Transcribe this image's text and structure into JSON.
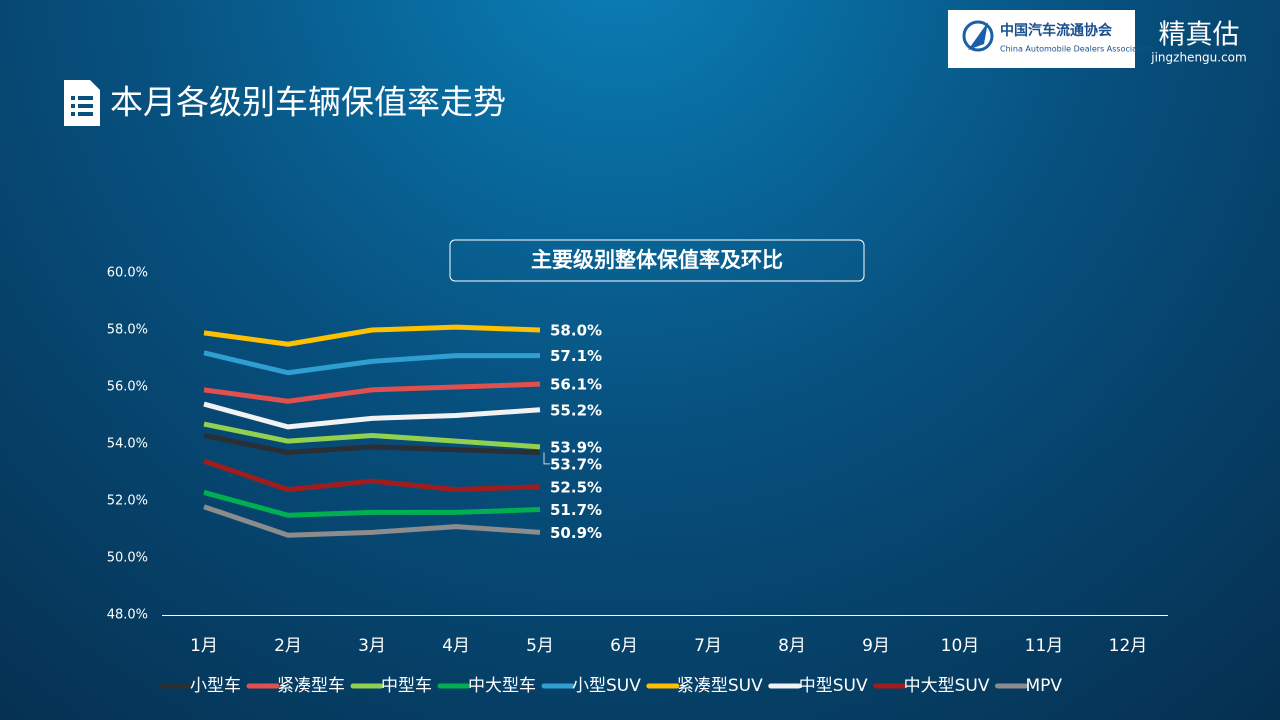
{
  "header": {
    "title": "本月各级别车辆保值率走势",
    "logo_cn": "中国汽车流通协会",
    "logo_en": "China Automobile Dealers Association",
    "brand": "精真估",
    "brand_url": "jingzhengu.com"
  },
  "chart_data": {
    "type": "line",
    "title": "主要级别整体保值率及环比",
    "categories": [
      "1月",
      "2月",
      "3月",
      "4月",
      "5月",
      "6月",
      "7月",
      "8月",
      "9月",
      "10月",
      "11月",
      "12月"
    ],
    "ylim": [
      48,
      60
    ],
    "yticks": [
      {
        "value": 48,
        "label": "48.0%"
      },
      {
        "value": 50,
        "label": "50.0%"
      },
      {
        "value": 52,
        "label": "52.0%"
      },
      {
        "value": 54,
        "label": "54.0%"
      },
      {
        "value": 56,
        "label": "56.0%"
      },
      {
        "value": 58,
        "label": "58.0%"
      },
      {
        "value": 60,
        "label": "60.0%"
      }
    ],
    "grid": false,
    "legend": "bottom",
    "series": [
      {
        "name": "小型车",
        "color": "#2a2e35",
        "values": [
          54.3,
          53.7,
          53.9,
          53.8,
          53.7,
          null,
          null,
          null,
          null,
          null,
          null,
          null
        ],
        "value_labels": [
          null,
          null,
          null,
          null,
          "53.7%",
          null,
          null,
          null,
          null,
          null,
          null,
          null
        ]
      },
      {
        "name": "紧凑型车",
        "color": "#e0504f",
        "values": [
          55.9,
          55.5,
          55.9,
          56.0,
          56.1,
          null,
          null,
          null,
          null,
          null,
          null,
          null
        ],
        "value_labels": [
          null,
          null,
          null,
          null,
          "56.1%",
          null,
          null,
          null,
          null,
          null,
          null,
          null
        ]
      },
      {
        "name": "中型车",
        "color": "#92d050",
        "values": [
          54.7,
          54.1,
          54.3,
          54.1,
          53.9,
          null,
          null,
          null,
          null,
          null,
          null,
          null
        ],
        "value_labels": [
          null,
          null,
          null,
          null,
          "53.9%",
          null,
          null,
          null,
          null,
          null,
          null,
          null
        ]
      },
      {
        "name": "中大型车",
        "color": "#00b050",
        "values": [
          52.3,
          51.5,
          51.6,
          51.6,
          51.7,
          null,
          null,
          null,
          null,
          null,
          null,
          null
        ],
        "value_labels": [
          null,
          null,
          null,
          null,
          "51.7%",
          null,
          null,
          null,
          null,
          null,
          null,
          null
        ]
      },
      {
        "name": "小型SUV",
        "color": "#2e9fd0",
        "values": [
          57.2,
          56.5,
          56.9,
          57.1,
          57.1,
          null,
          null,
          null,
          null,
          null,
          null,
          null
        ],
        "value_labels": [
          null,
          null,
          null,
          null,
          "57.1%",
          null,
          null,
          null,
          null,
          null,
          null,
          null
        ]
      },
      {
        "name": "紧凑型SUV",
        "color": "#ffc000",
        "values": [
          57.9,
          57.5,
          58.0,
          58.1,
          58.0,
          null,
          null,
          null,
          null,
          null,
          null,
          null
        ],
        "value_labels": [
          null,
          null,
          null,
          null,
          "58.0%",
          null,
          null,
          null,
          null,
          null,
          null,
          null
        ]
      },
      {
        "name": "中型SUV",
        "color": "#f2f2f2",
        "values": [
          55.4,
          54.6,
          54.9,
          55.0,
          55.2,
          null,
          null,
          null,
          null,
          null,
          null,
          null
        ],
        "value_labels": [
          null,
          null,
          null,
          null,
          "55.2%",
          null,
          null,
          null,
          null,
          null,
          null,
          null
        ]
      },
      {
        "name": "中大型SUV",
        "color": "#a11d1d",
        "values": [
          53.4,
          52.4,
          52.7,
          52.4,
          52.5,
          null,
          null,
          null,
          null,
          null,
          null,
          null
        ],
        "value_labels": [
          null,
          null,
          null,
          null,
          "52.5%",
          null,
          null,
          null,
          null,
          null,
          null,
          null
        ]
      },
      {
        "name": "MPV",
        "color": "#8c8c8c",
        "values": [
          51.8,
          50.8,
          50.9,
          51.1,
          50.9,
          null,
          null,
          null,
          null,
          null,
          null,
          null
        ],
        "value_labels": [
          null,
          null,
          null,
          null,
          "50.9%",
          null,
          null,
          null,
          null,
          null,
          null,
          null
        ]
      }
    ]
  }
}
